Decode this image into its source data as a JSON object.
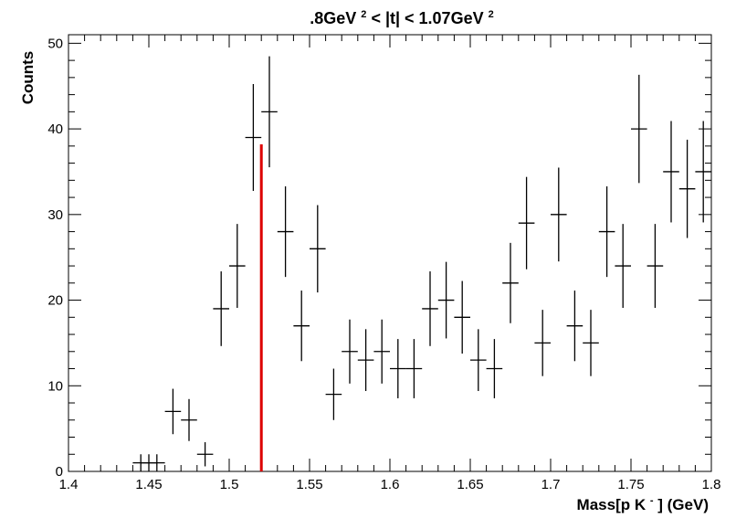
{
  "chart_data": {
    "type": "scatter",
    "title": {
      "prefix": ".8GeV",
      "sup1": "2",
      "middle": " < |t| < 1.07GeV",
      "sup2": "2"
    },
    "xlabel": {
      "prefix": "Mass[p K",
      "sup": "-",
      "suffix": " ] (GeV)"
    },
    "ylabel": "Counts",
    "xlim": [
      1.4,
      1.8
    ],
    "ylim": [
      0,
      51
    ],
    "x_ticks": [
      "1.4",
      "1.45",
      "1.5",
      "1.55",
      "1.6",
      "1.65",
      "1.7",
      "1.75",
      "1.8"
    ],
    "y_ticks": [
      "0",
      "10",
      "20",
      "30",
      "40",
      "50"
    ],
    "grid": false,
    "legend": "none",
    "series": [
      {
        "color": "#000000",
        "points": [
          {
            "x": 1.445,
            "y": 1,
            "err": 1
          },
          {
            "x": 1.45,
            "y": 1,
            "err": 1
          },
          {
            "x": 1.455,
            "y": 1,
            "err": 1
          },
          {
            "x": 1.465,
            "y": 7,
            "err": 2.65
          },
          {
            "x": 1.475,
            "y": 6,
            "err": 2.45
          },
          {
            "x": 1.485,
            "y": 2,
            "err": 1.41
          },
          {
            "x": 1.495,
            "y": 19,
            "err": 4.36
          },
          {
            "x": 1.505,
            "y": 24,
            "err": 4.9
          },
          {
            "x": 1.515,
            "y": 39,
            "err": 6.24
          },
          {
            "x": 1.525,
            "y": 42,
            "err": 6.48
          },
          {
            "x": 1.535,
            "y": 28,
            "err": 5.29
          },
          {
            "x": 1.545,
            "y": 17,
            "err": 4.12
          },
          {
            "x": 1.555,
            "y": 26,
            "err": 5.1
          },
          {
            "x": 1.565,
            "y": 9,
            "err": 3
          },
          {
            "x": 1.575,
            "y": 14,
            "err": 3.74
          },
          {
            "x": 1.585,
            "y": 13,
            "err": 3.61
          },
          {
            "x": 1.595,
            "y": 14,
            "err": 3.74
          },
          {
            "x": 1.605,
            "y": 12,
            "err": 3.46
          },
          {
            "x": 1.615,
            "y": 12,
            "err": 3.46
          },
          {
            "x": 1.625,
            "y": 19,
            "err": 4.36
          },
          {
            "x": 1.635,
            "y": 20,
            "err": 4.47
          },
          {
            "x": 1.645,
            "y": 18,
            "err": 4.24
          },
          {
            "x": 1.655,
            "y": 13,
            "err": 3.61
          },
          {
            "x": 1.665,
            "y": 12,
            "err": 3.46
          },
          {
            "x": 1.675,
            "y": 22,
            "err": 4.69
          },
          {
            "x": 1.685,
            "y": 29,
            "err": 5.39
          },
          {
            "x": 1.695,
            "y": 15,
            "err": 3.87
          },
          {
            "x": 1.705,
            "y": 30,
            "err": 5.48
          },
          {
            "x": 1.715,
            "y": 17,
            "err": 4.12
          },
          {
            "x": 1.725,
            "y": 15,
            "err": 3.87
          },
          {
            "x": 1.735,
            "y": 28,
            "err": 5.29
          },
          {
            "x": 1.745,
            "y": 24,
            "err": 4.9
          },
          {
            "x": 1.755,
            "y": 40,
            "err": 6.32
          },
          {
            "x": 1.765,
            "y": 24,
            "err": 4.9
          },
          {
            "x": 1.775,
            "y": 35,
            "err": 5.92
          },
          {
            "x": 1.785,
            "y": 33,
            "err": 5.74
          },
          {
            "x": 1.795,
            "y": 35,
            "err": 5.92
          }
        ]
      }
    ],
    "marker_line": {
      "x": 1.52,
      "y_top": 38.2,
      "color": "#dd0000"
    },
    "colors": {
      "frame": "#000000",
      "points": "#000000",
      "marker": "#dd0000",
      "background": "#ffffff"
    }
  }
}
